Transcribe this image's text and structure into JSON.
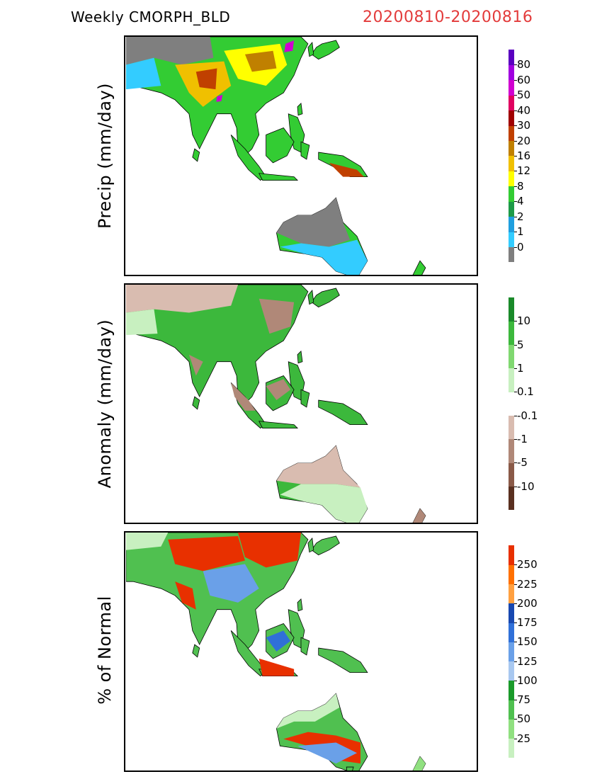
{
  "title": {
    "left": "Weekly  CMORPH_BLD",
    "right": "20200810-20200816"
  },
  "panels": [
    {
      "ylabel": "Precip (mm/day)",
      "colorbar": {
        "colors": [
          "#7f7f7f",
          "#33ccff",
          "#1f9fdf",
          "#1d9a48",
          "#33cc33",
          "#ffff00",
          "#f0c000",
          "#c08000",
          "#c04000",
          "#a00000",
          "#e00060",
          "#d000d0",
          "#a000e0",
          "#5a00c0"
        ],
        "labels": [
          "0",
          "1",
          "2",
          "4",
          "8",
          "12",
          "16",
          "20",
          "30",
          "40",
          "50",
          "60",
          "80"
        ]
      }
    },
    {
      "ylabel": "Anomaly (mm/day)",
      "colorbar": {
        "colors": [
          "#5a3020",
          "#8a5a48",
          "#b08878",
          "#d9bcb0",
          "#ffffff",
          "#c8f0c0",
          "#80d870",
          "#3cb83c",
          "#1a8a2a"
        ],
        "labels": [
          "-10",
          "-5",
          "-1",
          "-0.1",
          "0.1",
          "1",
          "5",
          "10"
        ]
      }
    },
    {
      "ylabel": "% of Normal",
      "colorbar": {
        "colors": [
          "#c8f0c0",
          "#90e080",
          "#50c050",
          "#1a9a2a",
          "#a8c8f0",
          "#6aa0e8",
          "#3070d8",
          "#1848b0",
          "#ffa040",
          "#ff7000",
          "#e83000"
        ],
        "labels": [
          "25",
          "50",
          "75",
          "100",
          "125",
          "150",
          "175",
          "200",
          "225",
          "250"
        ]
      }
    }
  ]
}
